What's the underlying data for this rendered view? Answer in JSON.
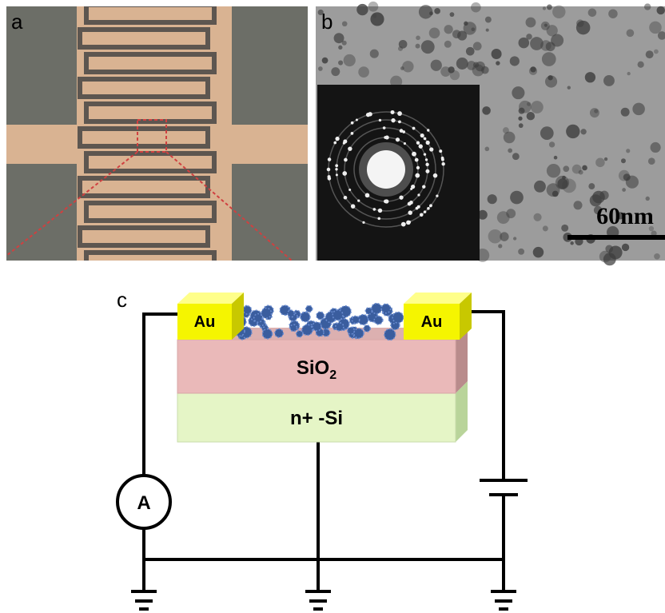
{
  "panels": {
    "a": {
      "label": "a"
    },
    "b": {
      "label": "b",
      "scale_bar": "60nm"
    },
    "c": {
      "label": "c",
      "electrode_left": "Au",
      "electrode_right": "Au",
      "oxide": {
        "base": "SiO",
        "sub": "2"
      },
      "substrate": "n+ -Si",
      "meter": "A"
    }
  }
}
